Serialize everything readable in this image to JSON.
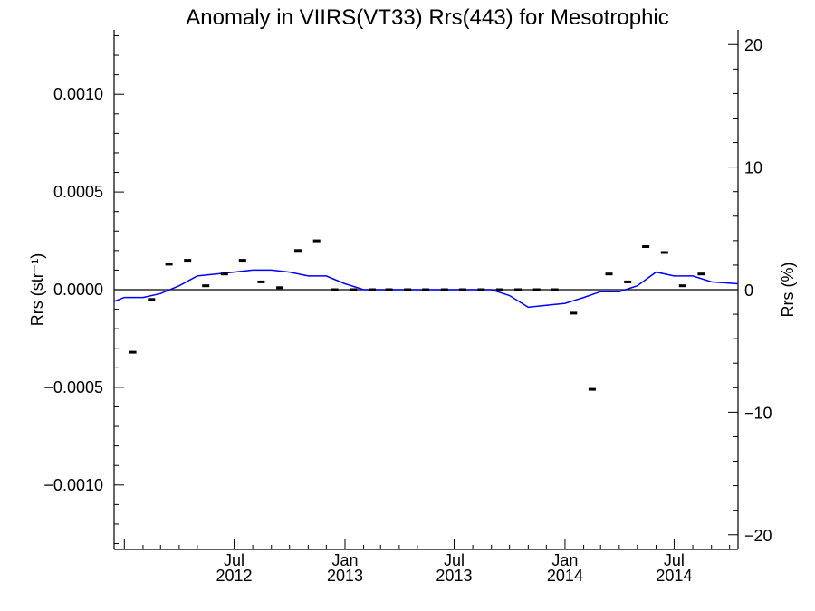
{
  "chart_data": {
    "type": "line",
    "title": "Anomaly in VIIRS(VT33) Rrs(443) for Mesotrophic",
    "ylabel": "Rrs (str⁻¹)",
    "y2label": "Rrs (%)",
    "xlabel": "",
    "ylim": [
      -0.00133,
      0.00133
    ],
    "y2lim": [
      -21.2,
      21.2
    ],
    "xlim": [
      "2011-12-15",
      "2014-10-15"
    ],
    "y_ticks": [
      {
        "value": 0.001,
        "label": "0.0010"
      },
      {
        "value": 0.0005,
        "label": "0.0005"
      },
      {
        "value": 0.0,
        "label": "0.0000"
      },
      {
        "value": -0.0005,
        "label": "−0.0005"
      },
      {
        "value": -0.001,
        "label": "−0.0010"
      }
    ],
    "y2_ticks": [
      {
        "value": 20,
        "label": "20"
      },
      {
        "value": 10,
        "label": "10"
      },
      {
        "value": 0,
        "label": "0"
      },
      {
        "value": -10,
        "label": "−10"
      },
      {
        "value": -20,
        "label": "−20"
      }
    ],
    "x_ticks": [
      {
        "date": "2012-07-01",
        "month": "Jul",
        "year": "2012"
      },
      {
        "date": "2013-01-01",
        "month": "Jan",
        "year": "2013"
      },
      {
        "date": "2013-07-01",
        "month": "Jul",
        "year": "2013"
      },
      {
        "date": "2014-01-01",
        "month": "Jan",
        "year": "2014"
      },
      {
        "date": "2014-07-01",
        "month": "Jul",
        "year": "2014"
      }
    ],
    "grid": false,
    "series": [
      {
        "type": "scatter",
        "marker": "dash",
        "color": "#000000",
        "x": [
          "2012-01",
          "2012-02",
          "2012-03",
          "2012-04",
          "2012-05",
          "2012-06",
          "2012-07",
          "2012-08",
          "2012-09",
          "2012-10",
          "2012-11",
          "2012-12",
          "2013-01",
          "2013-02",
          "2013-03",
          "2013-04",
          "2013-05",
          "2013-06",
          "2013-07",
          "2013-08",
          "2013-09",
          "2013-10",
          "2013-11",
          "2013-12",
          "2014-01",
          "2014-02",
          "2014-03",
          "2014-04",
          "2014-05",
          "2014-06",
          "2014-07",
          "2014-08"
        ],
        "values": [
          -0.00032,
          -5e-05,
          0.00013,
          0.00015,
          2e-05,
          8e-05,
          0.00015,
          4e-05,
          1e-05,
          0.0002,
          0.00025,
          0.0,
          0.0,
          0.0,
          0.0,
          0.0,
          0.0,
          0.0,
          0.0,
          0.0,
          0.0,
          0.0,
          0.0,
          0.0,
          -0.00012,
          -0.00051,
          8e-05,
          4e-05,
          0.00022,
          0.00019,
          2e-05,
          8e-05
        ]
      },
      {
        "type": "line",
        "color": "#0000ff",
        "x": [
          "2011-12-15",
          "2012-01-01",
          "2012-02-01",
          "2012-03-01",
          "2012-04-01",
          "2012-05-01",
          "2012-06-01",
          "2012-07-01",
          "2012-08-01",
          "2012-09-01",
          "2012-10-01",
          "2012-11-01",
          "2012-12-01",
          "2013-01-01",
          "2013-02-01",
          "2013-03-01",
          "2013-04-01",
          "2013-05-01",
          "2013-06-01",
          "2013-07-01",
          "2013-08-01",
          "2013-09-01",
          "2013-10-01",
          "2013-11-01",
          "2013-12-01",
          "2014-01-01",
          "2014-02-01",
          "2014-03-01",
          "2014-04-01",
          "2014-05-01",
          "2014-06-01",
          "2014-07-01",
          "2014-08-01",
          "2014-09-01",
          "2014-10-15"
        ],
        "values": [
          -6e-05,
          -4e-05,
          -4e-05,
          -2e-05,
          2e-05,
          7e-05,
          8e-05,
          9e-05,
          0.0001,
          0.0001,
          9e-05,
          7e-05,
          7e-05,
          3e-05,
          0.0,
          0.0,
          0.0,
          0.0,
          0.0,
          0.0,
          0.0,
          0.0,
          -3e-05,
          -9e-05,
          -8e-05,
          -7e-05,
          -4e-05,
          -1e-05,
          -1e-05,
          2e-05,
          9e-05,
          7e-05,
          7e-05,
          4e-05,
          3e-05
        ]
      }
    ]
  }
}
